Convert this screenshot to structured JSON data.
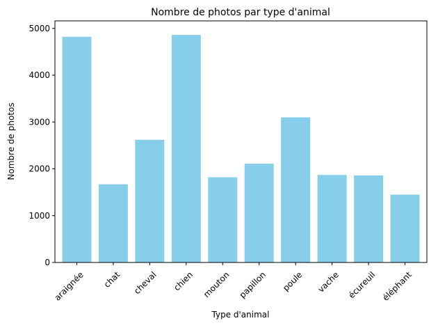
{
  "chart_data": {
    "type": "bar",
    "title": "Nombre de photos par type d'animal",
    "xlabel": "Type d'animal",
    "ylabel": "Nombre de photos",
    "categories": [
      "araignée",
      "chat",
      "cheval",
      "chien",
      "mouton",
      "papillon",
      "poule",
      "vache",
      "écureuil",
      "éléphant"
    ],
    "values": [
      4820,
      1670,
      2620,
      4860,
      1820,
      2110,
      3100,
      1870,
      1860,
      1450
    ],
    "ylim": [
      0,
      5160
    ],
    "yticks": [
      0,
      1000,
      2000,
      3000,
      4000,
      5000
    ],
    "bar_color": "#87ceeb",
    "grid": false,
    "legend": "none"
  }
}
